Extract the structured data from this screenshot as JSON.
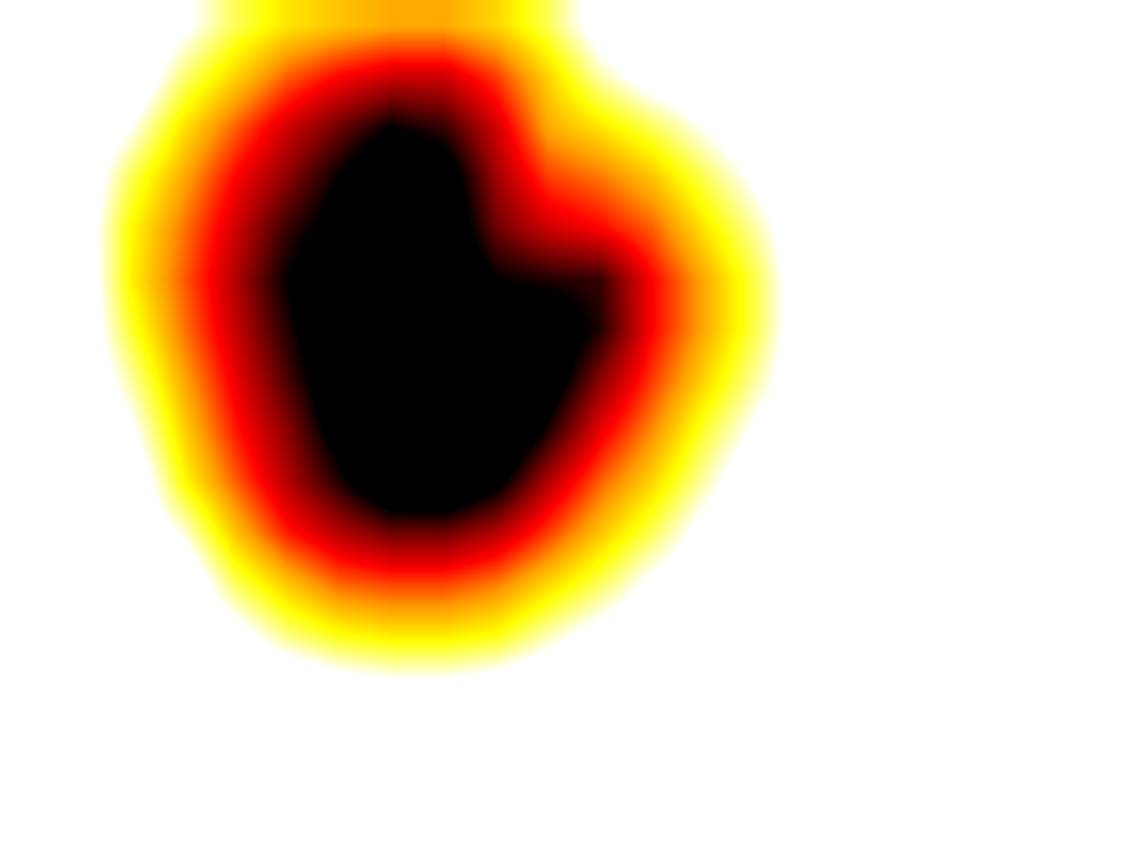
{
  "chart_data": {
    "type": "heatmap",
    "x": [
      0,
      1,
      2,
      3,
      4,
      5,
      6,
      7,
      8,
      9,
      10,
      11,
      12,
      13,
      14,
      15,
      16,
      17,
      18,
      19,
      20,
      21
    ],
    "y": [
      0,
      1,
      2,
      3,
      4,
      5,
      6,
      7,
      8,
      9,
      10,
      11,
      12,
      13,
      14,
      15,
      16
    ],
    "xlim": [
      -0.5,
      21.5
    ],
    "ylim": [
      16.5,
      -0.5
    ],
    "zlim": [
      0,
      1
    ],
    "z": [
      [
        0,
        0,
        0,
        0.08,
        0.2,
        0.28,
        0.32,
        0.35,
        0.35,
        0.3,
        0.2,
        0.05,
        0,
        0,
        0,
        0,
        0,
        0,
        0,
        0,
        0,
        0
      ],
      [
        0,
        0,
        0,
        0.18,
        0.3,
        0.42,
        0.5,
        0.55,
        0.55,
        0.45,
        0.3,
        0.15,
        0.05,
        0,
        0,
        0,
        0,
        0,
        0,
        0,
        0,
        0
      ],
      [
        0,
        0,
        0.1,
        0.28,
        0.42,
        0.55,
        0.65,
        0.75,
        0.7,
        0.55,
        0.35,
        0.28,
        0.2,
        0.1,
        0,
        0,
        0,
        0,
        0,
        0,
        0,
        0
      ],
      [
        0,
        0,
        0.2,
        0.35,
        0.5,
        0.62,
        0.75,
        0.9,
        0.82,
        0.6,
        0.45,
        0.4,
        0.32,
        0.2,
        0.08,
        0,
        0,
        0,
        0,
        0,
        0,
        0
      ],
      [
        0,
        0.02,
        0.25,
        0.4,
        0.55,
        0.7,
        0.8,
        0.92,
        0.85,
        0.65,
        0.55,
        0.5,
        0.42,
        0.28,
        0.15,
        0,
        0,
        0,
        0,
        0,
        0,
        0
      ],
      [
        0,
        0,
        0.26,
        0.42,
        0.58,
        0.75,
        0.85,
        0.9,
        0.88,
        0.75,
        0.72,
        0.7,
        0.5,
        0.35,
        0.2,
        0,
        0,
        0,
        0,
        0,
        0,
        0
      ],
      [
        0,
        0,
        0.22,
        0.4,
        0.56,
        0.72,
        0.88,
        0.95,
        0.95,
        0.88,
        0.85,
        0.72,
        0.5,
        0.35,
        0.2,
        0,
        0,
        0,
        0,
        0,
        0,
        0
      ],
      [
        0,
        0,
        0.15,
        0.35,
        0.52,
        0.68,
        0.85,
        0.95,
        0.98,
        0.95,
        0.82,
        0.62,
        0.45,
        0.3,
        0.15,
        0,
        0,
        0,
        0,
        0,
        0,
        0
      ],
      [
        0,
        0,
        0.08,
        0.3,
        0.48,
        0.62,
        0.8,
        0.95,
        0.98,
        0.92,
        0.72,
        0.52,
        0.38,
        0.22,
        0.08,
        0,
        0,
        0,
        0,
        0,
        0,
        0
      ],
      [
        0,
        0,
        0,
        0.25,
        0.42,
        0.58,
        0.72,
        0.88,
        0.9,
        0.78,
        0.58,
        0.42,
        0.3,
        0.15,
        0,
        0,
        0,
        0,
        0,
        0,
        0,
        0
      ],
      [
        0,
        0,
        0,
        0.12,
        0.32,
        0.48,
        0.58,
        0.65,
        0.65,
        0.58,
        0.45,
        0.32,
        0.2,
        0.06,
        0,
        0,
        0,
        0,
        0,
        0,
        0,
        0
      ],
      [
        0,
        0,
        0,
        0,
        0.2,
        0.32,
        0.42,
        0.45,
        0.45,
        0.4,
        0.3,
        0.2,
        0.08,
        0,
        0,
        0,
        0,
        0,
        0,
        0,
        0,
        0
      ],
      [
        0,
        0,
        0,
        0,
        0.06,
        0.18,
        0.25,
        0.28,
        0.28,
        0.25,
        0.15,
        0.06,
        0,
        0,
        0,
        0,
        0,
        0,
        0,
        0,
        0,
        0
      ],
      [
        0,
        0,
        0,
        0,
        0,
        0,
        0.05,
        0.08,
        0.08,
        0.05,
        0,
        0,
        0,
        0,
        0,
        0,
        0,
        0,
        0,
        0,
        0,
        0
      ],
      [
        0,
        0,
        0,
        0,
        0,
        0,
        0,
        0,
        0,
        0,
        0,
        0,
        0,
        0,
        0,
        0,
        0,
        0,
        0,
        0,
        0,
        0
      ],
      [
        0,
        0,
        0,
        0,
        0,
        0,
        0,
        0,
        0,
        0,
        0,
        0,
        0,
        0,
        0,
        0,
        0,
        0,
        0,
        0,
        0,
        0
      ],
      [
        0,
        0,
        0,
        0,
        0,
        0,
        0,
        0,
        0,
        0,
        0,
        0,
        0,
        0,
        0,
        0,
        0,
        0,
        0,
        0,
        0,
        0
      ]
    ],
    "grid": false,
    "tick_labels": false
  }
}
